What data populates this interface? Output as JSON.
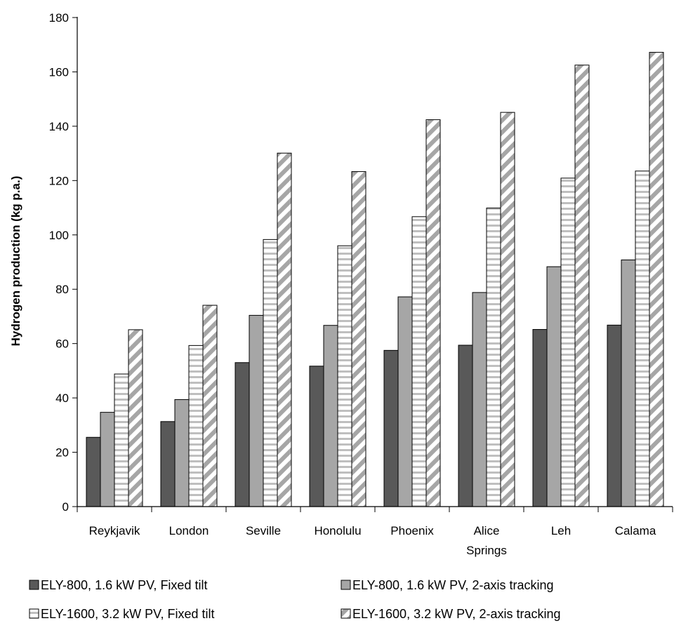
{
  "chart_data": {
    "type": "bar",
    "ylabel": "Hydrogen production (kg p.a.)",
    "xlabel": "",
    "ylim": [
      0,
      180
    ],
    "yticks": [
      0,
      20,
      40,
      60,
      80,
      100,
      120,
      140,
      160,
      180
    ],
    "grid": false,
    "legend_position": "bottom",
    "categories": [
      [
        "Reykjavik"
      ],
      [
        "London"
      ],
      [
        "Seville"
      ],
      [
        "Honolulu"
      ],
      [
        "Phoenix"
      ],
      [
        "Alice",
        "Springs"
      ],
      [
        "Leh"
      ],
      [
        "Calama"
      ]
    ],
    "series": [
      {
        "name": "ELY-800, 1.6 kW PV, Fixed tilt",
        "pattern": "solid-dark",
        "color": "#595959",
        "values": [
          25.5,
          31.3,
          53.0,
          51.7,
          57.5,
          59.4,
          65.2,
          66.8
        ]
      },
      {
        "name": "ELY-800, 1.6 kW PV, 2-axis tracking",
        "pattern": "solid-light",
        "color": "#a6a6a6",
        "values": [
          34.7,
          39.4,
          70.4,
          66.7,
          77.2,
          78.8,
          88.3,
          90.8
        ]
      },
      {
        "name": "ELY-1600, 3.2 kW PV, Fixed tilt",
        "pattern": "horizontal-stripes",
        "color": "#bfbfbf",
        "values": [
          48.8,
          59.3,
          98.3,
          96.0,
          106.7,
          109.9,
          120.9,
          123.5
        ]
      },
      {
        "name": "ELY-1600, 3.2 kW PV, 2-axis tracking",
        "pattern": "diagonal-stripes",
        "color": "#a6a6a6",
        "values": [
          65.1,
          74.1,
          130.1,
          123.3,
          142.4,
          145.1,
          162.5,
          167.2
        ]
      }
    ]
  }
}
